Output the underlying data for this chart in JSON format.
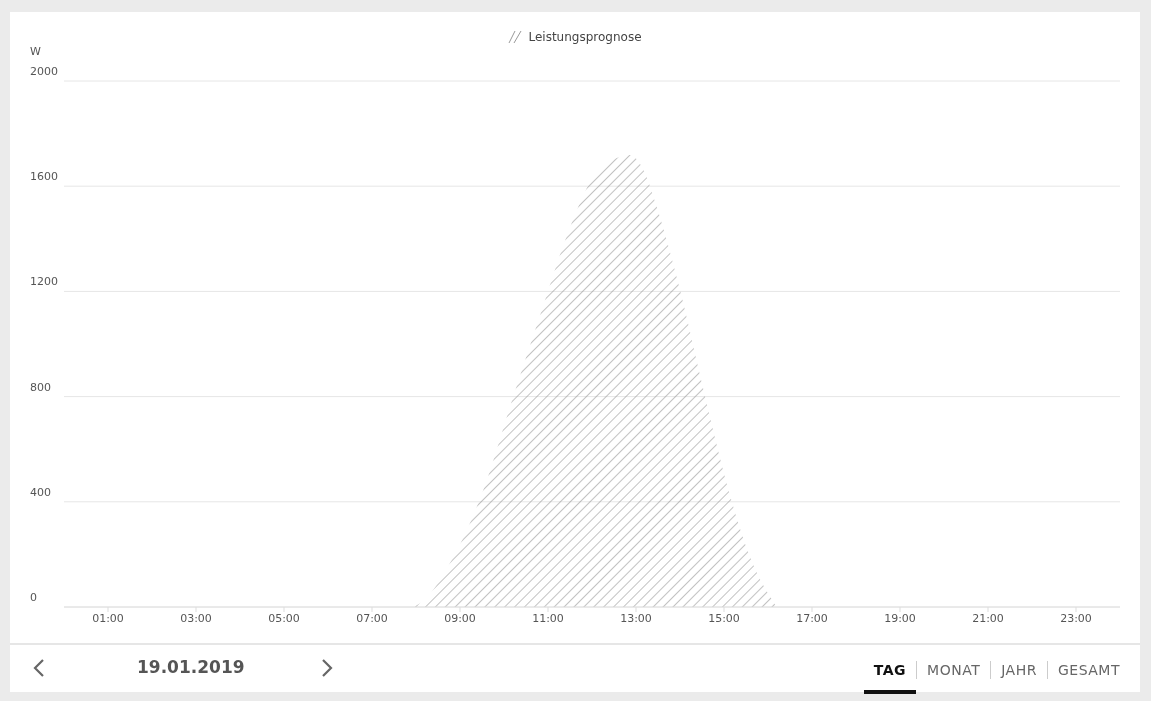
{
  "chart_data": {
    "type": "area",
    "x": [
      0,
      7.75,
      8.02,
      8.77,
      9.53,
      10.21,
      10.86,
      11.42,
      12.03,
      12.64,
      12.86,
      13.17,
      13.47,
      14.0,
      14.57,
      15.06,
      15.59,
      16.05,
      16.23,
      24
    ],
    "series": [
      {
        "name": "Leistungsprognose",
        "color": "#999999",
        "values": [
          0,
          0,
          8,
          166,
          445,
          800,
          1129,
          1408,
          1636,
          1712,
          1719,
          1662,
          1522,
          1205,
          800,
          470,
          191,
          39,
          0,
          0
        ]
      }
    ],
    "ylabel": "W",
    "xlim": [
      0,
      24
    ],
    "xticks": [
      {
        "value": 1,
        "label": "01:00"
      },
      {
        "value": 3,
        "label": "03:00"
      },
      {
        "value": 5,
        "label": "05:00"
      },
      {
        "value": 7,
        "label": "07:00"
      },
      {
        "value": 9,
        "label": "09:00"
      },
      {
        "value": 11,
        "label": "11:00"
      },
      {
        "value": 13,
        "label": "13:00"
      },
      {
        "value": 15,
        "label": "15:00"
      },
      {
        "value": 17,
        "label": "17:00"
      },
      {
        "value": 19,
        "label": "19:00"
      },
      {
        "value": 21,
        "label": "21:00"
      },
      {
        "value": 23,
        "label": "23:00"
      }
    ],
    "ylim": [
      0,
      2000
    ],
    "yticks": [
      0,
      400,
      800,
      1200,
      1600,
      2000
    ],
    "grid": "y",
    "legend": "top",
    "annotations": [
      "19.01.2019",
      "TAG",
      "MONAT",
      "JAHR",
      "GESAMT"
    ]
  }
}
